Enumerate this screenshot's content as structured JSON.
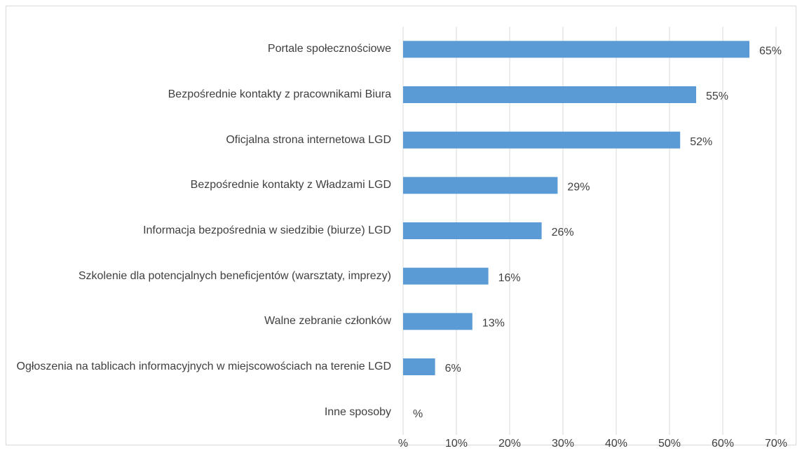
{
  "chart_data": {
    "type": "bar",
    "orientation": "horizontal",
    "categories": [
      "Portale społecznościowe",
      "Bezpośrednie kontakty z pracownikami Biura",
      "Oficjalna strona internetowa LGD",
      "Bezpośrednie kontakty z Władzami LGD",
      "Informacja bezpośrednia w siedzibie (biurze) LGD",
      "Szkolenie dla potencjalnych beneficjentów (warsztaty, imprezy)",
      "Walne zebranie członków",
      "Ogłoszenia na tablicach informacyjnych w miejscowościach na terenie LGD",
      "Inne sposoby"
    ],
    "values": [
      65,
      55,
      52,
      29,
      26,
      16,
      13,
      6,
      0
    ],
    "value_labels": [
      "65%",
      "55%",
      "52%",
      "29%",
      "26%",
      "16%",
      "13%",
      "6%",
      "%"
    ],
    "color": "#5b9bd5",
    "xlim": [
      0,
      70
    ],
    "xticks": [
      {
        "value": 0,
        "label": "%"
      },
      {
        "value": 10,
        "label": "10%"
      },
      {
        "value": 20,
        "label": "20%"
      },
      {
        "value": 30,
        "label": "30%"
      },
      {
        "value": 40,
        "label": "40%"
      },
      {
        "value": 50,
        "label": "50%"
      },
      {
        "value": 60,
        "label": "60%"
      },
      {
        "value": 70,
        "label": "70%"
      }
    ],
    "grid": true
  }
}
